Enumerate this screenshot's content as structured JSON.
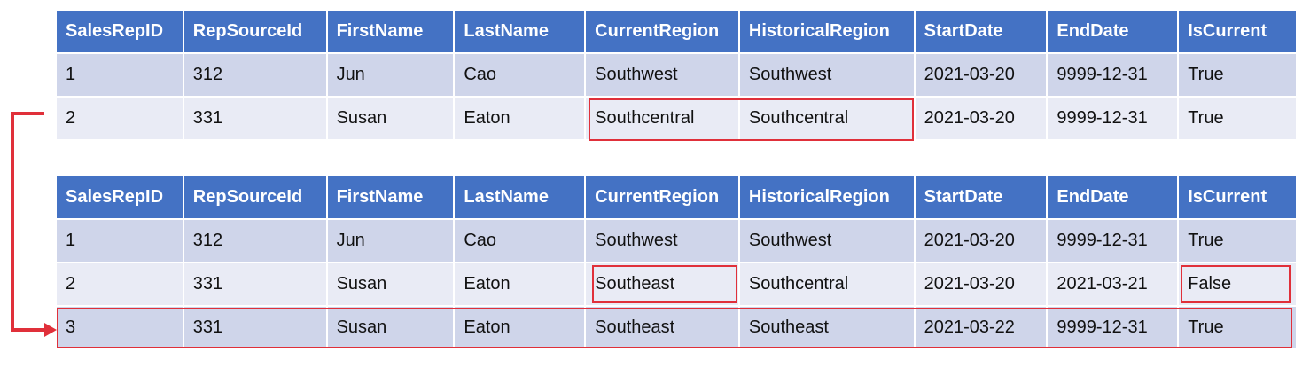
{
  "columns": [
    "SalesRepID",
    "RepSourceId",
    "FirstName",
    "LastName",
    "CurrentRegion",
    "HistoricalRegion",
    "StartDate",
    "EndDate",
    "IsCurrent"
  ],
  "table_before": {
    "rows": [
      [
        "1",
        "312",
        "Jun",
        "Cao",
        "Southwest",
        "Southwest",
        "2021-03-20",
        "9999-12-31",
        "True"
      ],
      [
        "2",
        "331",
        "Susan",
        "Eaton",
        "Southcentral",
        "Southcentral",
        "2021-03-20",
        "9999-12-31",
        "True"
      ]
    ]
  },
  "table_after": {
    "rows": [
      [
        "1",
        "312",
        "Jun",
        "Cao",
        "Southwest",
        "Southwest",
        "2021-03-20",
        "9999-12-31",
        "True"
      ],
      [
        "2",
        "331",
        "Susan",
        "Eaton",
        "Southeast",
        "Southcentral",
        "2021-03-20",
        "2021-03-21",
        "False"
      ],
      [
        "3",
        "331",
        "Susan",
        "Eaton",
        "Southeast",
        "Southeast",
        "2021-03-22",
        "9999-12-31",
        "True"
      ]
    ]
  },
  "highlight_color": "#e0303a",
  "header_color": "#4472c4"
}
